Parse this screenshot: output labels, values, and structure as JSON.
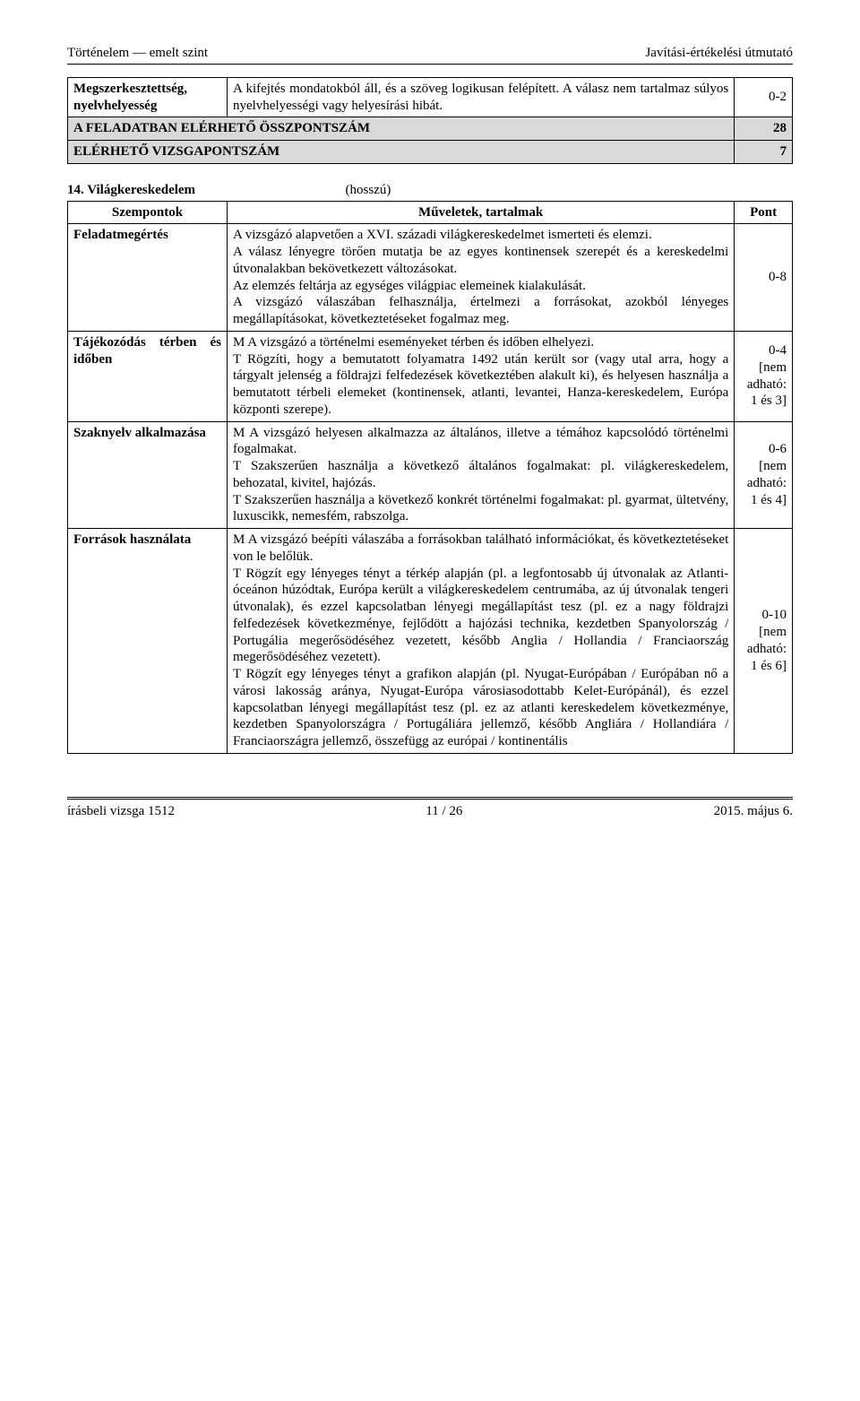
{
  "header": {
    "left": "Történelem — emelt szint",
    "right": "Javítási-értékelési útmutató"
  },
  "table1": {
    "r1": {
      "label": "Megszerkesztettség, nyelvhelyesség",
      "content": "A kifejtés mondatokból áll, és a szöveg logikusan felépített. A válasz nem tartalmaz súlyos nyelvhelyességi vagy helyesírási hibát.",
      "pts": "0-2"
    },
    "r2": {
      "label": "A FELADATBAN ELÉRHETŐ ÖSSZPONTSZÁM",
      "pts": "28"
    },
    "r3": {
      "label": "ELÉRHETŐ VIZSGAPONTSZÁM",
      "pts": "7"
    }
  },
  "section": {
    "num": "14. Világkereskedelem",
    "suffix": "(hosszú)"
  },
  "table2": {
    "head": {
      "c1": "Szempontok",
      "c2": "Műveletek, tartalmak",
      "c3": "Pont"
    },
    "rows": [
      {
        "label": "Feladatmegértés",
        "content": "A vizsgázó alapvetően a XVI. századi világkereskedelmet ismerteti és elemzi.\nA válasz lényegre törően mutatja be az egyes kontinensek szerepét és a kereskedelmi útvonalakban bekövetkezett változásokat.\nAz elemzés feltárja az egységes világpiac elemeinek kialakulását.\nA vizsgázó válaszában felhasználja, értelmezi a forrásokat, azokból lényeges megállapításokat, következtetéseket fogalmaz meg.",
        "pts": "0-8"
      },
      {
        "label": "Tájékozódás térben és időben",
        "content": "M A vizsgázó a történelmi eseményeket térben és időben elhelyezi.\nT Rögzíti, hogy a bemutatott folyamatra 1492 után került sor (vagy utal arra, hogy a tárgyalt jelenség a földrajzi felfedezések következtében alakult ki), és helyesen használja a bemutatott térbeli elemeket (kontinensek, atlanti, levantei, Hanza-kereskedelem, Európa központi szerepe).",
        "pts": "0-4\n[nem adható: 1 és 3]"
      },
      {
        "label": "Szaknyelv alkalmazása",
        "content": "M A vizsgázó helyesen alkalmazza az általános, illetve a témához kapcsolódó történelmi fogalmakat.\nT Szakszerűen használja a következő általános fogalmakat: pl. világkereskedelem, behozatal, kivitel, hajózás.\nT Szakszerűen használja a következő konkrét történelmi fogalmakat: pl. gyarmat, ültetvény, luxuscikk, nemesfém, rabszolga.",
        "pts": "0-6\n[nem adható: 1 és 4]"
      },
      {
        "label": "Források használata",
        "content": "M A vizsgázó beépíti válaszába a forrásokban található információkat, és következtetéseket von le belőlük.\nT Rögzít egy lényeges tényt a térkép alapján (pl. a legfontosabb új útvonalak az Atlanti-óceánon húzódtak, Európa került a világkereskedelem centrumába, az új útvonalak tengeri útvonalak), és ezzel kapcsolatban lényegi megállapítást tesz (pl. ez a nagy földrajzi felfedezések következménye, fejlődött a hajózási technika, kezdetben Spanyolország / Portugália megerősödéséhez vezetett, később Anglia / Hollandia / Franciaország megerősödéséhez vezetett).\nT Rögzít egy lényeges tényt a grafikon alapján (pl. Nyugat-Európában / Európában nő a városi lakosság aránya, Nyugat-Európa városiasodottabb Kelet-Európánál), és ezzel kapcsolatban lényegi megállapítást tesz (pl. ez az atlanti kereskedelem következménye, kezdetben Spanyolországra / Portugáliára jellemző, később Angliára / Hollandiára / Franciaországra jellemző, összefügg az európai / kontinentális",
        "pts": "0-10\n[nem adható: 1 és 6]"
      }
    ]
  },
  "footer": {
    "left": "írásbeli vizsga 1512",
    "center": "11 / 26",
    "right": "2015. május 6."
  }
}
